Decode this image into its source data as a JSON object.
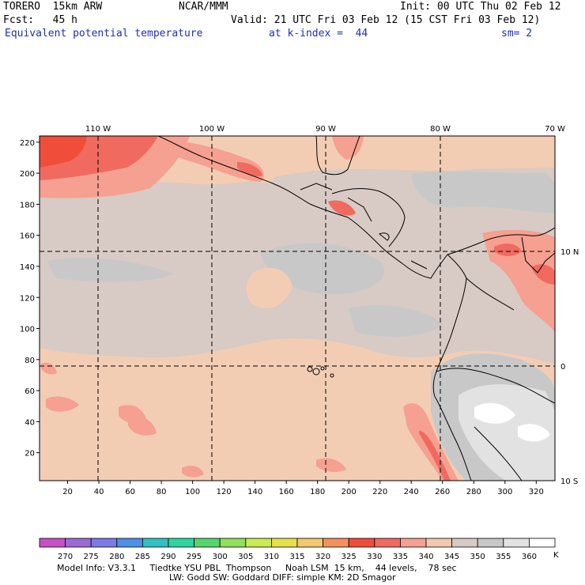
{
  "header": {
    "model": "TORERO  15km ARW",
    "org": "NCAR/MMM",
    "init": "Init: 00 UTC Thu 02 Feb 12",
    "fcst": "Fcst:   45 h",
    "valid": "Valid: 21 UTC Fri 03 Feb 12 (15 CST Fri 03 Feb 12)",
    "field": "Equivalent potential temperature",
    "level": "at k-index =  44",
    "smooth": "sm= 2"
  },
  "map": {
    "x_ticks": [
      "20",
      "40",
      "60",
      "80",
      "100",
      "120",
      "140",
      "160",
      "180",
      "200",
      "220",
      "240",
      "260",
      "280",
      "300",
      "320"
    ],
    "y_ticks": [
      "20",
      "40",
      "60",
      "80",
      "100",
      "120",
      "140",
      "160",
      "180",
      "200",
      "220"
    ],
    "lon_labels": [
      "110 W",
      "100 W",
      "90 W",
      "80 W",
      "70 W"
    ],
    "lat_labels": [
      "10 N",
      "0",
      "10 S"
    ]
  },
  "colorbar": {
    "labels": [
      "270",
      "275",
      "280",
      "285",
      "290",
      "295",
      "300",
      "305",
      "310",
      "315",
      "320",
      "325",
      "330",
      "335",
      "340",
      "345",
      "350",
      "355",
      "360"
    ],
    "unit": "K",
    "colors": [
      "#c94fc9",
      "#9b6bd4",
      "#7b7be8",
      "#4f8fe6",
      "#2fc2c2",
      "#2ed59f",
      "#56d46e",
      "#8fe05a",
      "#c8ec52",
      "#e8e04a",
      "#f5c870",
      "#f59060",
      "#f04e3a",
      "#f06a60",
      "#f5a090",
      "#f2c8b0",
      "#d8cac4",
      "#c8c8c8",
      "#e2e2e2",
      "#ffffff"
    ]
  },
  "footer": {
    "line1": "Model Info: V3.3.1     Tiedtke YSU PBL  Thompson     Noah LSM  15 km,    44 levels,    78 sec",
    "line2": "LW: Godd SW: Goddard DIFF: simple KM: 2D Smagor"
  }
}
